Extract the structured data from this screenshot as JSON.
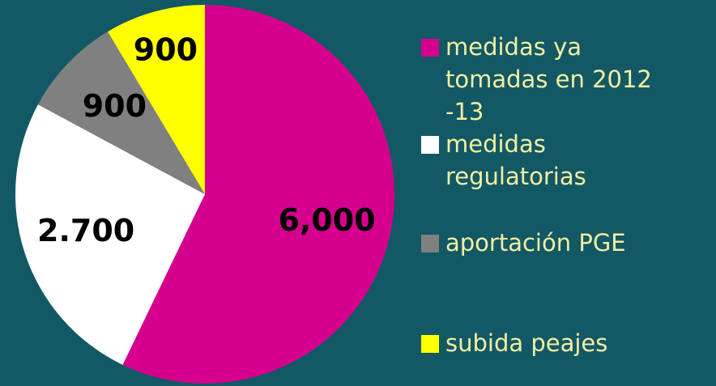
{
  "chart_data": {
    "type": "pie",
    "categories": [
      "medidas ya tomadas en 2012 -13",
      "medidas regulatorias",
      "aportación PGE",
      "subida peajes"
    ],
    "values": [
      6000,
      2700,
      900,
      900
    ],
    "value_labels": [
      "6,000",
      "2.700",
      "900",
      "900"
    ],
    "colors": [
      "#d6008f",
      "#ffffff",
      "#808080",
      "#ffff00"
    ],
    "legend": "right"
  }
}
